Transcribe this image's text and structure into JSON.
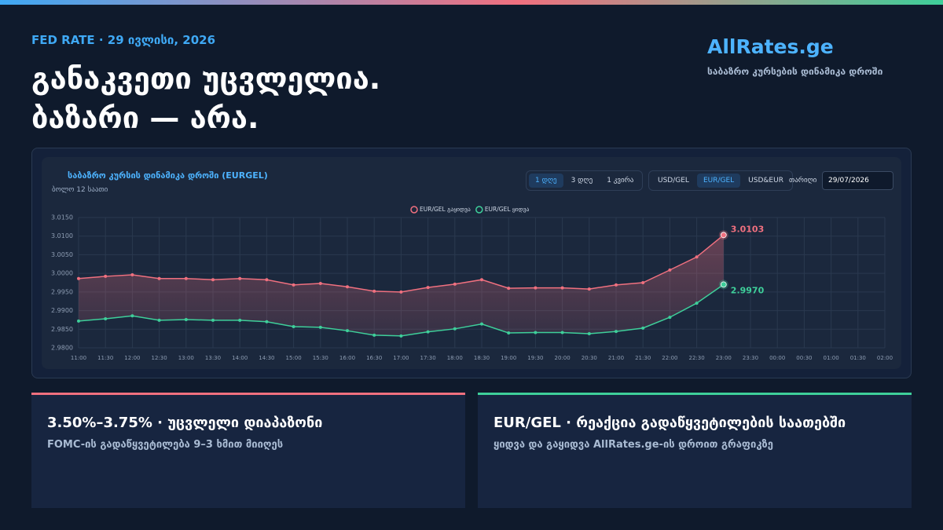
{
  "header": {
    "kicker": "FED RATE · 29 ივლისი, 2026",
    "title_lines": [
      "განაკვეთი უცვლელია.",
      "ბაზარი — არა."
    ],
    "brand": "AllRates.ge",
    "tagline": "საბაზრო კურსების დინამიკა დროში"
  },
  "controls": {
    "range_buttons": [
      "1 დღე",
      "3 დღე",
      "1 კვირა"
    ],
    "pair_buttons": [
      "USD/GEL",
      "EUR/GEL",
      "USD&EUR"
    ],
    "date_label": "თარიღი",
    "date_value": "29/07/2026"
  },
  "chart_data": {
    "type": "line",
    "title": "საბაზრო კურსის დინამიკა დროში (EURGEL)",
    "subtitle": "ბოლო 12 საათი",
    "categories": [
      "11:00",
      "11:30",
      "12:00",
      "12:30",
      "13:00",
      "13:30",
      "14:00",
      "14:30",
      "15:00",
      "15:30",
      "16:00",
      "16:30",
      "17:00",
      "17:30",
      "18:00",
      "18:30",
      "19:00",
      "19:30",
      "20:00",
      "20:30",
      "21:00",
      "21:30",
      "22:00",
      "22:30",
      "23:00",
      "23:30",
      "00:00",
      "00:30",
      "01:00",
      "01:30",
      "02:00"
    ],
    "series": [
      {
        "name": "EUR/GEL გაყიდვა",
        "color": "#f0707f",
        "values": [
          2.9986,
          2.9992,
          2.9996,
          2.9986,
          2.9986,
          2.9983,
          2.9986,
          2.9983,
          2.9969,
          2.9973,
          2.9964,
          2.9952,
          2.995,
          2.9962,
          2.9971,
          2.9983,
          2.996,
          2.9961,
          2.9961,
          2.9958,
          2.9969,
          2.9975,
          3.0009,
          3.0044,
          3.0103,
          null,
          null,
          null,
          null,
          null,
          null
        ],
        "value_labels": [
          null,
          null,
          null,
          null,
          null,
          null,
          null,
          null,
          null,
          null,
          null,
          null,
          null,
          null,
          null,
          null,
          null,
          null,
          null,
          null,
          null,
          null,
          null,
          null,
          "3.0103",
          null,
          null,
          null,
          null,
          null,
          null
        ]
      },
      {
        "name": "EUR/GEL ყიდვა",
        "color": "#3ecf9a",
        "values": [
          2.9872,
          2.9878,
          2.9886,
          2.9874,
          2.9876,
          2.9874,
          2.9874,
          2.987,
          2.9857,
          2.9855,
          2.9846,
          2.9834,
          2.9832,
          2.9843,
          2.9851,
          2.9864,
          2.984,
          2.9841,
          2.9841,
          2.9838,
          2.9844,
          2.9853,
          2.9882,
          2.992,
          2.997,
          null,
          null,
          null,
          null,
          null,
          null
        ],
        "value_labels": [
          null,
          null,
          null,
          null,
          null,
          null,
          null,
          null,
          null,
          null,
          null,
          null,
          null,
          null,
          null,
          null,
          null,
          null,
          null,
          null,
          null,
          null,
          null,
          null,
          "2.9970",
          null,
          null,
          null,
          null,
          null,
          null
        ]
      }
    ],
    "ylim": [
      2.98,
      3.015
    ],
    "yticks": [
      {
        "value": 2.98,
        "label": "2.9800"
      },
      {
        "value": 2.985,
        "label": "2.9850"
      },
      {
        "value": 2.99,
        "label": "2.9900"
      },
      {
        "value": 2.995,
        "label": "2.9950"
      },
      {
        "value": 3.0,
        "label": "3.0000"
      },
      {
        "value": 3.005,
        "label": "3.0050"
      },
      {
        "value": 3.01,
        "label": "3.0100"
      },
      {
        "value": 3.015,
        "label": "3.0150"
      }
    ],
    "grid": true
  },
  "cards": [
    {
      "title": "3.50%–3.75% · უცვლელი დიაპაზონი",
      "subtitle": "FOMC-ის გადაწყვეტილება 9–3 ხმით მიიღეს",
      "color": "#f0707f"
    },
    {
      "title": "EUR/GEL · რეაქცია გადაწყვეტილების საათებში",
      "subtitle": "ყიდვა და გაყიდვა AllRates.ge-ის დროით გრაფიკზე",
      "color": "#3ecf9a"
    }
  ]
}
